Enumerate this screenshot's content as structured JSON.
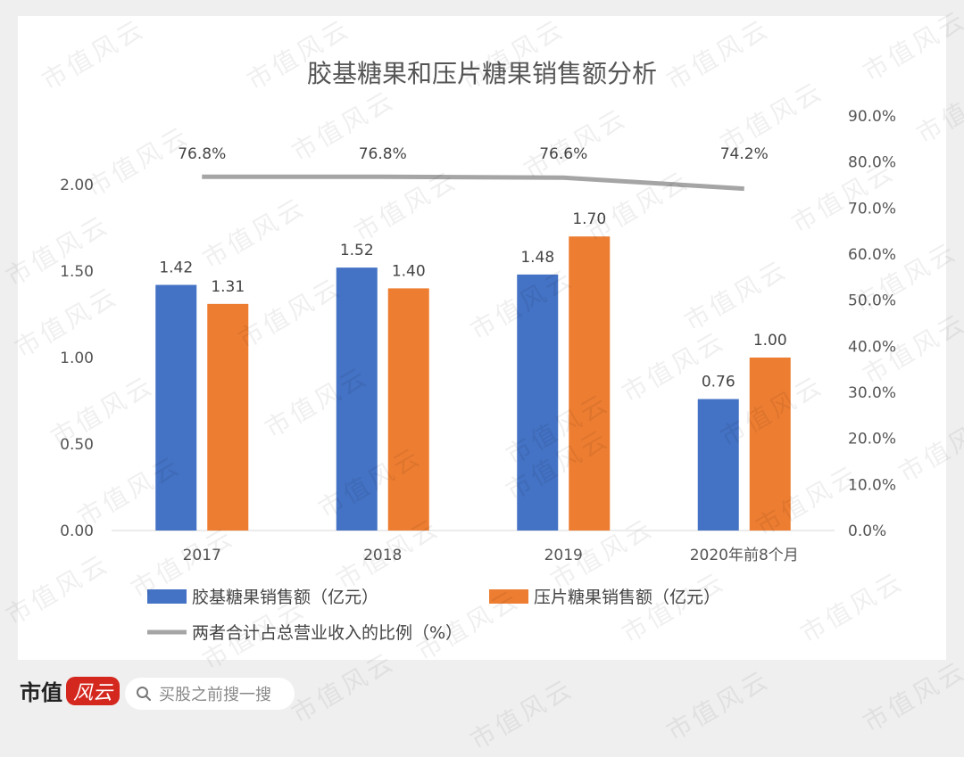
{
  "chart_data": {
    "type": "bar",
    "title": "胶基糖果和压片糖果销售额分析",
    "categories": [
      "2017",
      "2018",
      "2019",
      "2020年前8个月"
    ],
    "series": [
      {
        "name": "胶基糖果销售额（亿元）",
        "type": "bar",
        "axis": "left",
        "color": "#4472c4",
        "values": [
          1.42,
          1.52,
          1.48,
          0.76
        ],
        "labels": [
          "1.42",
          "1.52",
          "1.48",
          "0.76"
        ]
      },
      {
        "name": "压片糖果销售额（亿元）",
        "type": "bar",
        "axis": "left",
        "color": "#ed7d31",
        "values": [
          1.31,
          1.4,
          1.7,
          1.0
        ],
        "labels": [
          "1.31",
          "1.40",
          "1.70",
          "1.00"
        ]
      },
      {
        "name": "两者合计占总营业收入的比例（%）",
        "type": "line",
        "axis": "right",
        "color": "#a5a5a5",
        "values": [
          76.8,
          76.8,
          76.6,
          74.2
        ],
        "labels": [
          "76.8%",
          "76.8%",
          "76.6%",
          "74.2%"
        ]
      }
    ],
    "y_left": {
      "ticks": [
        "0.00",
        "0.50",
        "1.00",
        "1.50",
        "2.00"
      ],
      "ylim": [
        0,
        2.3
      ]
    },
    "y_right": {
      "ticks": [
        "0.0%",
        "10.0%",
        "20.0%",
        "30.0%",
        "40.0%",
        "50.0%",
        "60.0%",
        "70.0%",
        "80.0%",
        "90.0%"
      ],
      "ylim": [
        0,
        90
      ]
    },
    "grid": false,
    "legend": "bottom"
  },
  "watermark": "市值风云",
  "footer": {
    "brand": "市值",
    "brand_logo": "风云",
    "search_icon": "search-icon",
    "search_text": "买股之前搜一搜"
  }
}
